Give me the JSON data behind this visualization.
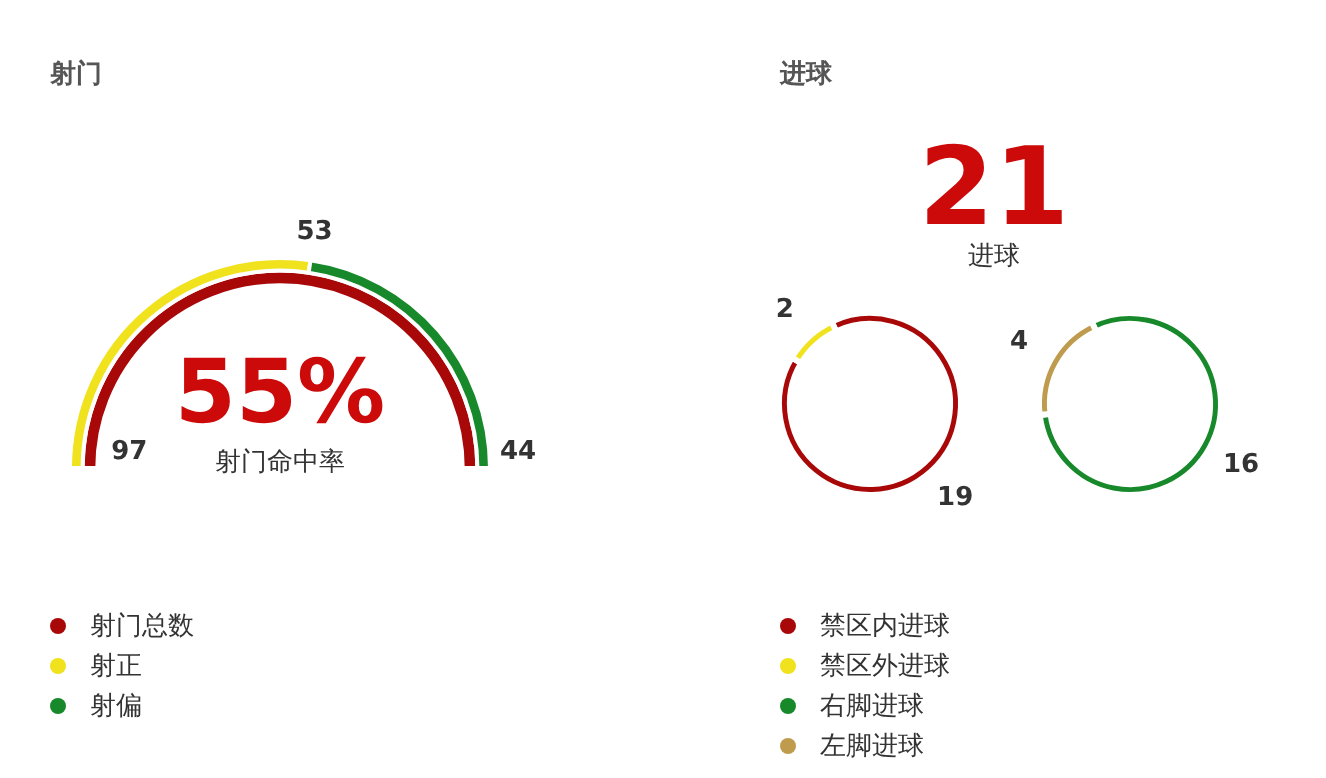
{
  "chart_data": [
    {
      "type": "donut",
      "title": "射门",
      "categories": [
        "射门总数",
        "射正",
        "射偏"
      ],
      "series": [
        {
          "values": [
            97,
            null,
            null
          ]
        },
        {
          "values": [
            null,
            53,
            44
          ]
        }
      ],
      "colors": [
        "#a80808",
        "#f0e21c",
        "#17892b"
      ],
      "data_labels": true,
      "legend": "bottom",
      "annotations": [
        "55%",
        "射门命中率"
      ]
    },
    {
      "type": "donut",
      "title": "进球",
      "categories": [
        "禁区内进球",
        "禁区外进球",
        "右脚进球",
        "左脚进球"
      ],
      "series": [
        {
          "values": [
            19,
            2,
            null,
            null
          ]
        },
        {
          "values": [
            null,
            null,
            16,
            4
          ]
        }
      ],
      "colors": [
        "#a80808",
        "#f0e21c",
        "#17892b",
        "#bf9b4e"
      ],
      "data_labels": true,
      "legend": "bottom",
      "annotations": [
        "21",
        "进球"
      ]
    }
  ]
}
